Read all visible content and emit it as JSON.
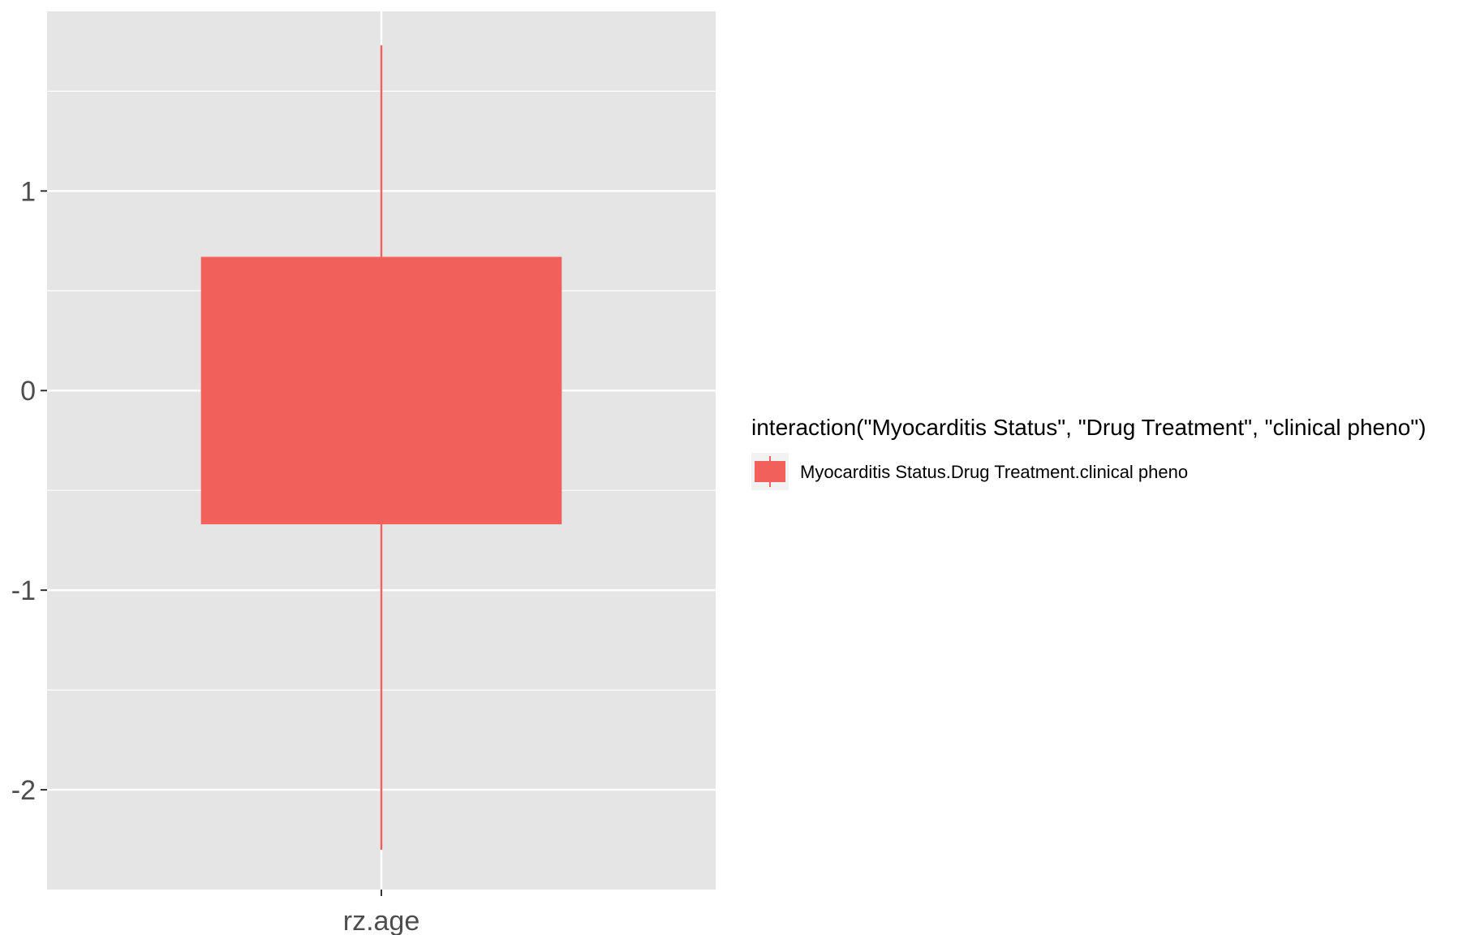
{
  "chart_data": {
    "type": "boxplot",
    "title": "",
    "xlabel": "",
    "ylabel": "",
    "categories": [
      "rz.age"
    ],
    "ylim": [
      -2.5,
      1.9
    ],
    "y_ticks": [
      -2,
      -1,
      0,
      1
    ],
    "y_tick_labels": [
      "-2",
      "-1",
      "0",
      "1"
    ],
    "grid": true,
    "legend_position": "right",
    "legend_title": "interaction(\"Myocarditis Status\", \"Drug Treatment\", \"clinical pheno\")",
    "series": [
      {
        "name": "Myocarditis Status.Drug Treatment.clinical pheno",
        "color": "#F2605B",
        "boxes": [
          {
            "category": "rz.age",
            "lower_whisker": -2.3,
            "q1": -0.67,
            "median": 0.0,
            "q3": 0.67,
            "upper_whisker": 1.73
          }
        ]
      }
    ]
  },
  "colors": {
    "panel_background": "#E5E5E5",
    "grid_line": "#FFFFFF",
    "axis_text": "#4D4D4D"
  }
}
